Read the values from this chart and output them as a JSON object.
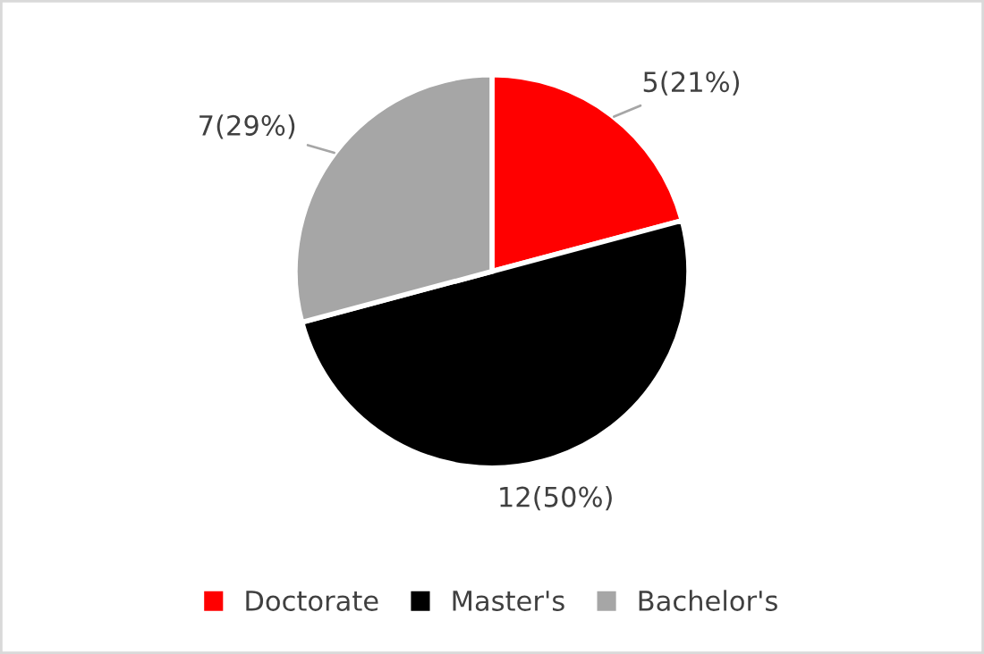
{
  "chart_data": {
    "type": "pie",
    "categories": [
      "Doctorate",
      "Master's",
      "Bachelor's"
    ],
    "values": [
      5,
      12,
      7
    ],
    "colors": [
      "#ff0000",
      "#000000",
      "#a6a6a6"
    ],
    "value_labels": [
      "5(21%)",
      "12(50%)",
      "7(29%)"
    ],
    "legend": "bottom"
  }
}
